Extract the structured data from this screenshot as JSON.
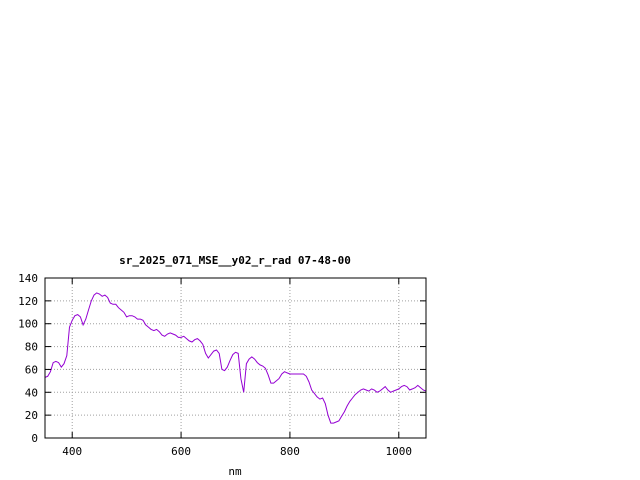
{
  "chart_data": {
    "type": "line",
    "title": "sr_2025_071_MSE__y02_r_rad 07-48-00",
    "xlabel": "nm",
    "ylabel": "",
    "xlim": [
      350,
      1050
    ],
    "ylim": [
      0,
      140
    ],
    "xticks": [
      400,
      600,
      800,
      1000
    ],
    "yticks": [
      0,
      20,
      40,
      60,
      80,
      100,
      120,
      140
    ],
    "grid": true,
    "series": [
      {
        "color": "#9400d3",
        "x": [
          350,
          355,
          360,
          365,
          370,
          375,
          380,
          385,
          390,
          395,
          400,
          405,
          410,
          415,
          420,
          425,
          430,
          435,
          440,
          445,
          450,
          455,
          460,
          465,
          470,
          475,
          480,
          485,
          490,
          495,
          500,
          505,
          510,
          515,
          520,
          525,
          530,
          535,
          540,
          545,
          550,
          555,
          560,
          565,
          570,
          575,
          580,
          585,
          590,
          595,
          600,
          605,
          610,
          615,
          620,
          625,
          630,
          635,
          640,
          645,
          650,
          655,
          660,
          665,
          670,
          675,
          680,
          685,
          690,
          695,
          700,
          705,
          710,
          715,
          720,
          725,
          730,
          735,
          740,
          745,
          750,
          755,
          760,
          765,
          770,
          775,
          780,
          785,
          790,
          795,
          800,
          805,
          810,
          815,
          820,
          825,
          830,
          835,
          840,
          845,
          850,
          855,
          860,
          865,
          870,
          875,
          880,
          885,
          890,
          895,
          900,
          905,
          910,
          915,
          920,
          925,
          930,
          935,
          940,
          945,
          950,
          955,
          960,
          965,
          970,
          975,
          980,
          985,
          990,
          995,
          1000,
          1005,
          1010,
          1015,
          1020,
          1025,
          1030,
          1035,
          1040,
          1045,
          1050
        ],
        "y": [
          53,
          54,
          58,
          66,
          67,
          66,
          62,
          65,
          72,
          97,
          103,
          107,
          108,
          106,
          99,
          104,
          112,
          120,
          125,
          127,
          126,
          124,
          125,
          123,
          118,
          117,
          117,
          114,
          112,
          110,
          106,
          107,
          107,
          106,
          104,
          104,
          103,
          99,
          97,
          95,
          94,
          95,
          93,
          90,
          89,
          91,
          92,
          91,
          90,
          88,
          88,
          89,
          87,
          85,
          84,
          86,
          87,
          85,
          82,
          74,
          70,
          73,
          76,
          77,
          74,
          60,
          59,
          62,
          68,
          73,
          75,
          74,
          52,
          40,
          65,
          69,
          71,
          69,
          66,
          64,
          63,
          61,
          55,
          48,
          48,
          50,
          52,
          56,
          58,
          57,
          56,
          56,
          56,
          56,
          56,
          56,
          54,
          49,
          42,
          39,
          36,
          34,
          35,
          30,
          20,
          13,
          13,
          14,
          15,
          19,
          23,
          28,
          32,
          35,
          38,
          40,
          42,
          43,
          42,
          41,
          43,
          42,
          40,
          41,
          43,
          45,
          42,
          40,
          41,
          42,
          43,
          45,
          46,
          45,
          42,
          43,
          44,
          46,
          44,
          42,
          41
        ]
      }
    ]
  }
}
